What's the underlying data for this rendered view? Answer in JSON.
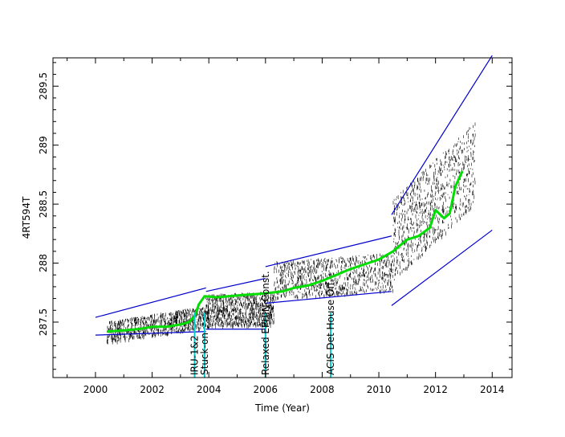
{
  "chart_data": {
    "type": "scatter",
    "xlabel": "Time (Year)",
    "ylabel": "4RT594T",
    "xlim": [
      1998.5,
      2014.7
    ],
    "ylim": [
      287.03,
      289.74
    ],
    "xticks": [
      2000,
      2002,
      2004,
      2006,
      2008,
      2010,
      2012,
      2014
    ],
    "yticks": [
      287.5,
      288,
      288.5,
      289,
      289.5
    ],
    "grid": false,
    "colors": {
      "points": "#000000",
      "trend": "#00dd00",
      "envelope": "#0000cc",
      "event_marker": "#00cccc",
      "axes": "#000000"
    },
    "events": [
      {
        "label": "IRU-1&2",
        "x": 2003.5
      },
      {
        "label": "Stuck-on",
        "x": 2003.85
      },
      {
        "label": "Relaxed EPHIN Const.",
        "x": 2006.0
      },
      {
        "label": "ACIS Det House Off",
        "x": 2008.3
      }
    ],
    "trend": [
      [
        2000.4,
        287.42
      ],
      [
        2001.0,
        287.43
      ],
      [
        2001.5,
        287.44
      ],
      [
        2002.0,
        287.46
      ],
      [
        2002.5,
        287.46
      ],
      [
        2003.0,
        287.48
      ],
      [
        2003.3,
        287.5
      ],
      [
        2003.5,
        287.55
      ],
      [
        2003.65,
        287.65
      ],
      [
        2003.85,
        287.72
      ],
      [
        2004.3,
        287.71
      ],
      [
        2004.7,
        287.72
      ],
      [
        2005.2,
        287.73
      ],
      [
        2005.8,
        287.74
      ],
      [
        2006.2,
        287.75
      ],
      [
        2006.6,
        287.76
      ],
      [
        2007.0,
        287.79
      ],
      [
        2007.5,
        287.81
      ],
      [
        2008.0,
        287.85
      ],
      [
        2008.5,
        287.9
      ],
      [
        2009.0,
        287.95
      ],
      [
        2009.5,
        287.99
      ],
      [
        2010.0,
        288.03
      ],
      [
        2010.5,
        288.1
      ],
      [
        2011.0,
        288.2
      ],
      [
        2011.4,
        288.23
      ],
      [
        2011.8,
        288.3
      ],
      [
        2012.0,
        288.45
      ],
      [
        2012.3,
        288.38
      ],
      [
        2012.5,
        288.42
      ],
      [
        2012.7,
        288.65
      ],
      [
        2012.95,
        288.78
      ]
    ],
    "envelopes": [
      {
        "name": "segment-1-upper",
        "points": [
          [
            2000.0,
            287.54
          ],
          [
            2003.9,
            287.79
          ]
        ]
      },
      {
        "name": "segment-1-lower",
        "points": [
          [
            2000.0,
            287.39
          ],
          [
            2003.9,
            287.42
          ]
        ]
      },
      {
        "name": "segment-2-upper",
        "points": [
          [
            2003.9,
            287.76
          ],
          [
            2006.0,
            287.87
          ]
        ]
      },
      {
        "name": "segment-2-lower",
        "points": [
          [
            2003.9,
            287.44
          ],
          [
            2006.0,
            287.44
          ]
        ]
      },
      {
        "name": "segment-3-upper",
        "points": [
          [
            2006.0,
            287.97
          ],
          [
            2010.45,
            288.23
          ]
        ]
      },
      {
        "name": "segment-3-lower",
        "points": [
          [
            2006.0,
            287.66
          ],
          [
            2010.45,
            287.76
          ]
        ]
      },
      {
        "name": "segment-4-upper",
        "points": [
          [
            2010.45,
            288.41
          ],
          [
            2014.0,
            289.76
          ]
        ]
      },
      {
        "name": "segment-4-lower",
        "points": [
          [
            2010.45,
            287.64
          ],
          [
            2014.0,
            288.28
          ]
        ]
      }
    ],
    "point_bands": [
      {
        "x": [
          2000.4,
          2003.9
        ],
        "y_center": [
          287.42,
          287.55
        ],
        "spread": 0.09
      },
      {
        "x": [
          2003.9,
          2006.3
        ],
        "y_center": [
          287.6,
          287.62
        ],
        "spread": 0.14
      },
      {
        "x": [
          2006.3,
          2010.5
        ],
        "y_center": [
          287.86,
          287.93
        ],
        "spread": 0.16
      },
      {
        "x": [
          2010.5,
          2013.4
        ],
        "y_center": [
          288.2,
          288.85
        ],
        "spread": 0.35
      }
    ]
  }
}
